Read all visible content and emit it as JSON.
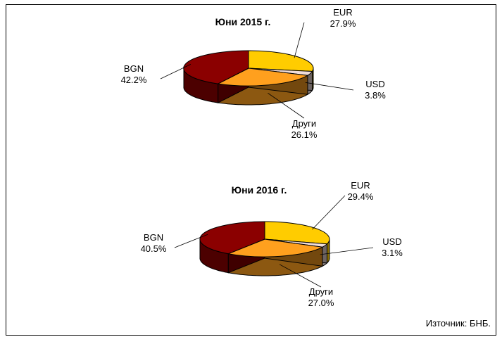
{
  "source_note": "Източник: БНБ.",
  "colors": {
    "BGN": "#8b0000",
    "EUR": "#ffcc00",
    "USD": "#f0dcd8",
    "Други": "#ffa01e"
  },
  "chart_data": [
    {
      "type": "pie",
      "title": "Юни 2015 г.",
      "slices": [
        {
          "label": "EUR",
          "pct_label": "27.9%",
          "value": 27.9
        },
        {
          "label": "USD",
          "pct_label": "3.8%",
          "value": 3.8
        },
        {
          "label": "Други",
          "pct_label": "26.1%",
          "value": 26.1
        },
        {
          "label": "BGN",
          "pct_label": "42.2%",
          "value": 42.2
        }
      ]
    },
    {
      "type": "pie",
      "title": "Юни 2016 г.",
      "slices": [
        {
          "label": "EUR",
          "pct_label": "29.4%",
          "value": 29.4
        },
        {
          "label": "USD",
          "pct_label": "3.1%",
          "value": 3.1
        },
        {
          "label": "Други",
          "pct_label": "27.0%",
          "value": 27.0
        },
        {
          "label": "BGN",
          "pct_label": "40.5%",
          "value": 40.5
        }
      ]
    }
  ]
}
